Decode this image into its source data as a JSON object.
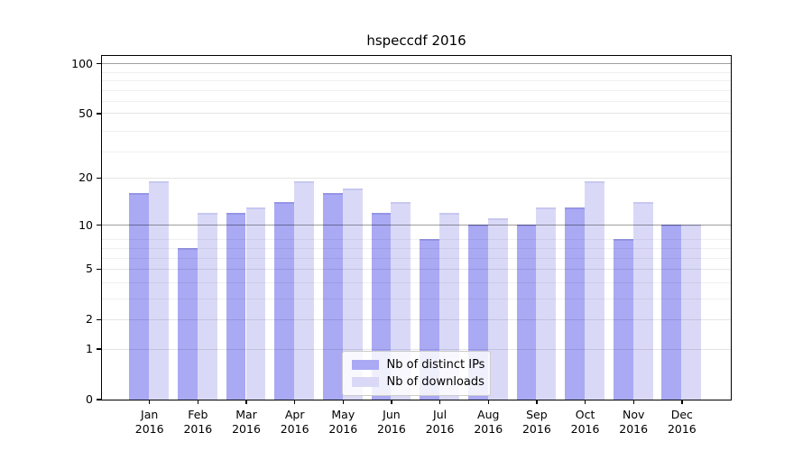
{
  "title": "hspeccdf 2016",
  "chart_data": {
    "type": "bar",
    "title": "hspeccdf 2016",
    "yscale": "log(1+x)",
    "ylim": [
      0,
      110
    ],
    "y_ticks": [
      0,
      1,
      2,
      5,
      10,
      20,
      50,
      100
    ],
    "grid": true,
    "legend_position": "lower center",
    "year": "2016",
    "months": [
      "Jan",
      "Feb",
      "Mar",
      "Apr",
      "May",
      "Jun",
      "Jul",
      "Aug",
      "Sep",
      "Oct",
      "Nov",
      "Dec"
    ],
    "categories": [
      "Jan 2016",
      "Feb 2016",
      "Mar 2016",
      "Apr 2016",
      "May 2016",
      "Jun 2016",
      "Jul 2016",
      "Aug 2016",
      "Sep 2016",
      "Oct 2016",
      "Nov 2016",
      "Dec 2016"
    ],
    "series": [
      {
        "name": "Nb of distinct IPs",
        "color": "#a9a9f4",
        "edge_color": "#9595e6",
        "values": [
          16,
          7,
          12,
          14,
          16,
          12,
          8,
          10,
          10,
          13,
          8,
          10
        ]
      },
      {
        "name": "Nb of downloads",
        "color": "#d9d9f7",
        "edge_color": "#c7c7f0",
        "values": [
          19,
          12,
          13,
          19,
          17,
          14,
          12,
          11,
          13,
          19,
          14,
          10
        ]
      }
    ]
  }
}
